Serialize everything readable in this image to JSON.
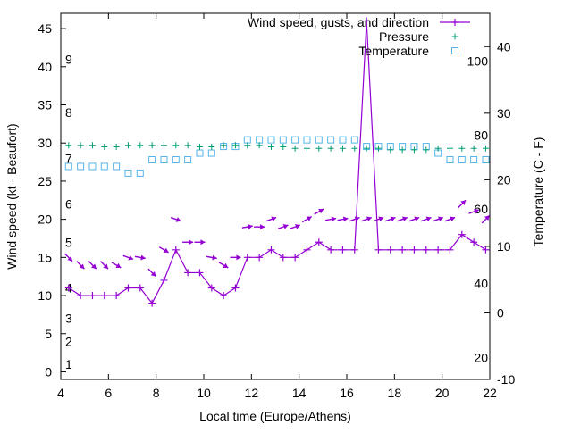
{
  "chart_data": {
    "type": "line",
    "title": "",
    "xlabel": "Local time (Europe/Athens)",
    "ylabel_left": "Wind speed (kt - Beaufort)",
    "ylabel_right": "Temperature (C - F)",
    "xlim": [
      4,
      22
    ],
    "ylim_left": [
      -1,
      47
    ],
    "ylim_right": [
      -10,
      45
    ],
    "x_ticks": [
      4,
      6,
      8,
      10,
      12,
      14,
      16,
      18,
      20,
      22
    ],
    "y_ticks_left": [
      0,
      5,
      10,
      15,
      20,
      25,
      30,
      35,
      40,
      45
    ],
    "y_ticks_right": [
      -10,
      0,
      10,
      20,
      30,
      40
    ],
    "beaufort_labels": [
      {
        "label": "1",
        "at": 1
      },
      {
        "label": "2",
        "at": 4
      },
      {
        "label": "3",
        "at": 7
      },
      {
        "label": "4",
        "at": 11
      },
      {
        "label": "5",
        "at": 17
      },
      {
        "label": "6",
        "at": 22
      },
      {
        "label": "7",
        "at": 28
      },
      {
        "label": "8",
        "at": 34
      },
      {
        "label": "9",
        "at": 41
      }
    ],
    "fahrenheit_labels": [
      {
        "label": "20",
        "at_c": -6.7
      },
      {
        "label": "40",
        "at_c": 4.4
      },
      {
        "label": "60",
        "at_c": 15.6
      },
      {
        "label": "80",
        "at_c": 26.7
      },
      {
        "label": "100",
        "at_c": 37.8
      }
    ],
    "legend": [
      {
        "name": "Wind speed, gusts, and direction",
        "color": "#9400d3",
        "marker": "plus-line"
      },
      {
        "name": "Pressure",
        "color": "#009e73",
        "marker": "plus"
      },
      {
        "name": "Temperature",
        "color": "#56b4e9",
        "marker": "square"
      }
    ],
    "wind_speed": {
      "x": [
        4.33,
        4.83,
        5.33,
        5.83,
        6.33,
        6.83,
        7.33,
        7.83,
        8.33,
        8.83,
        9.33,
        9.83,
        10.33,
        10.83,
        11.33,
        11.83,
        12.33,
        12.83,
        13.33,
        13.83,
        14.33,
        14.83,
        15.33,
        15.83,
        16.33,
        16.83,
        17.33,
        17.83,
        18.33,
        18.83,
        19.33,
        19.83,
        20.33,
        20.83,
        21.33,
        21.83
      ],
      "y": [
        11,
        10,
        10,
        10,
        10,
        11,
        11,
        9,
        12,
        16,
        13,
        13,
        11,
        10,
        11,
        15,
        15,
        16,
        15,
        15,
        16,
        17,
        16,
        16,
        16,
        46,
        16,
        16,
        16,
        16,
        16,
        16,
        16,
        18,
        17,
        16
      ]
    },
    "gusts": {
      "x": [
        4.33,
        4.83,
        5.33,
        5.83,
        6.33,
        6.83,
        7.33,
        7.83,
        8.33,
        8.83,
        9.33,
        9.83,
        10.33,
        10.83,
        11.33,
        11.83,
        12.33,
        12.83,
        13.33,
        13.83,
        14.33,
        14.83,
        15.33,
        15.83,
        16.33,
        16.83,
        17.33,
        17.83,
        18.33,
        18.83,
        19.33,
        19.83,
        20.33,
        20.83,
        21.33,
        21.83
      ],
      "y": [
        15,
        14,
        14,
        14,
        14,
        15,
        15,
        13,
        16,
        20,
        17,
        17,
        15,
        14,
        15,
        19,
        19,
        20,
        19,
        19,
        20,
        21,
        20,
        20,
        20,
        20,
        20,
        20,
        20,
        20,
        20,
        20,
        20,
        22,
        21,
        20
      ],
      "direction_deg": [
        135,
        135,
        135,
        135,
        120,
        110,
        100,
        135,
        120,
        110,
        90,
        90,
        100,
        120,
        90,
        80,
        90,
        70,
        70,
        70,
        60,
        60,
        80,
        80,
        70,
        70,
        70,
        70,
        70,
        70,
        70,
        70,
        70,
        45,
        70,
        45
      ]
    },
    "pressure": {
      "x": [
        4.33,
        4.83,
        5.33,
        5.83,
        6.33,
        6.83,
        7.33,
        7.83,
        8.33,
        8.83,
        9.33,
        9.83,
        10.33,
        10.83,
        11.33,
        11.83,
        12.33,
        12.83,
        13.33,
        13.83,
        14.33,
        14.83,
        15.33,
        15.83,
        16.33,
        16.83,
        17.33,
        17.83,
        18.33,
        18.83,
        19.33,
        19.83,
        20.33,
        20.83,
        21.33,
        21.83
      ],
      "y_left": [
        29.7,
        29.7,
        29.7,
        29.5,
        29.5,
        29.7,
        29.7,
        29.7,
        29.7,
        29.7,
        29.7,
        29.5,
        29.5,
        29.7,
        29.7,
        29.7,
        29.7,
        29.5,
        29.5,
        29.3,
        29.3,
        29.3,
        29.3,
        29.3,
        29.3,
        29.3,
        29.3,
        29.1,
        29.1,
        29.1,
        29.1,
        29.3,
        29.3,
        29.3,
        29.3,
        29.3
      ]
    },
    "temperature": {
      "x": [
        4.33,
        4.83,
        5.33,
        5.83,
        6.33,
        6.83,
        7.33,
        7.83,
        8.33,
        8.83,
        9.33,
        9.83,
        10.33,
        10.83,
        11.33,
        11.83,
        12.33,
        12.83,
        13.33,
        13.83,
        14.33,
        14.83,
        15.33,
        15.83,
        16.33,
        16.83,
        17.33,
        17.83,
        18.33,
        18.83,
        19.33,
        19.83,
        20.33,
        20.83,
        21.33,
        21.83
      ],
      "y": [
        22,
        22,
        22,
        22,
        22,
        21,
        21,
        23,
        23,
        23,
        23,
        24,
        24,
        25,
        25,
        26,
        26,
        26,
        26,
        26,
        26,
        26,
        26,
        26,
        26,
        25,
        25,
        25,
        25,
        25,
        25,
        24,
        23,
        23,
        23,
        23
      ]
    }
  }
}
